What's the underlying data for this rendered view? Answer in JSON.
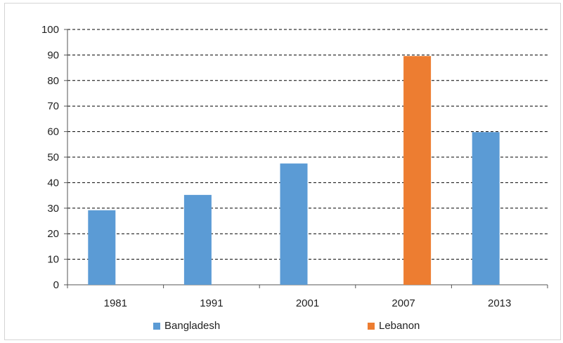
{
  "chart_data": {
    "type": "bar",
    "categories": [
      "1981",
      "1991",
      "2001",
      "2007",
      "2013"
    ],
    "series": [
      {
        "name": "Bangladesh",
        "color": "#5b9bd5",
        "values": [
          29.2,
          35.2,
          47.5,
          null,
          59.8
        ]
      },
      {
        "name": "Lebanon",
        "color": "#ed7d31",
        "values": [
          null,
          null,
          null,
          89.6,
          null
        ]
      }
    ],
    "title": "",
    "xlabel": "",
    "ylabel": "",
    "ylim": [
      0,
      100
    ],
    "yticks": [
      "0",
      "10",
      "20",
      "30",
      "40",
      "50",
      "60",
      "70",
      "80",
      "90",
      "100"
    ],
    "grid": true,
    "legend_position": "bottom"
  }
}
